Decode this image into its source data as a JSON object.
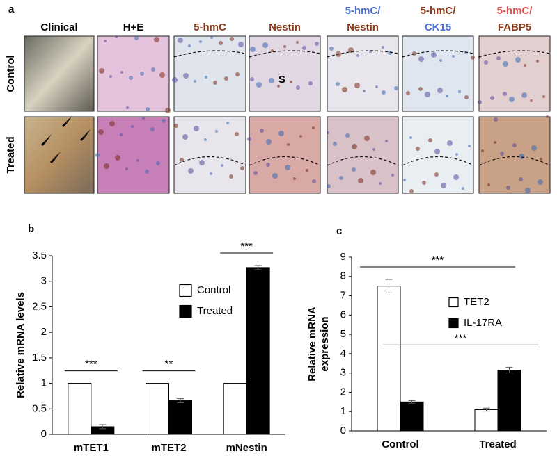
{
  "panel_a": {
    "label": "a",
    "columns": [
      [
        "Clinical"
      ],
      [
        "H+E"
      ],
      [
        "5-hmC"
      ],
      [
        "Nestin"
      ],
      [
        "5-hmC/",
        "Nestin"
      ],
      [
        "5-hmC/",
        "CK15"
      ],
      [
        "5-hmC/",
        "FABP5"
      ]
    ],
    "rows": [
      "Control",
      "Treated"
    ],
    "annotation": "S"
  },
  "chart_data": [
    {
      "type": "bar",
      "label": "b",
      "ylabel": "Relative mRNA levels",
      "categories": [
        "mTET1",
        "mTET2",
        "mNestin"
      ],
      "series": [
        {
          "name": "Control",
          "color": "#ffffff",
          "values": [
            1,
            1,
            1
          ]
        },
        {
          "name": "Treated",
          "color": "#000000",
          "values": [
            0.15,
            0.66,
            3.27
          ],
          "errors": [
            0.04,
            0.04,
            0.04
          ]
        }
      ],
      "significance": [
        "***",
        "**",
        "***"
      ],
      "ylim": [
        0,
        3.5
      ],
      "yticks": [
        0,
        0.5,
        1,
        1.5,
        2,
        2.5,
        3,
        3.5
      ]
    },
    {
      "type": "bar",
      "label": "c",
      "ylabel": [
        "Relative mRNA",
        "expression"
      ],
      "categories": [
        "Control",
        "Treated"
      ],
      "series": [
        {
          "name": "TET2",
          "color": "#ffffff",
          "values": [
            7.5,
            1.1
          ],
          "errors": [
            0.35,
            0.08
          ]
        },
        {
          "name": "IL-17RA",
          "color": "#000000",
          "values": [
            1.5,
            3.15
          ],
          "errors": [
            0.07,
            0.15
          ]
        }
      ],
      "significance": [
        "***",
        "***"
      ],
      "ylim": [
        0,
        9
      ],
      "yticks": [
        0,
        1,
        2,
        3,
        4,
        5,
        6,
        7,
        8,
        9
      ]
    }
  ]
}
